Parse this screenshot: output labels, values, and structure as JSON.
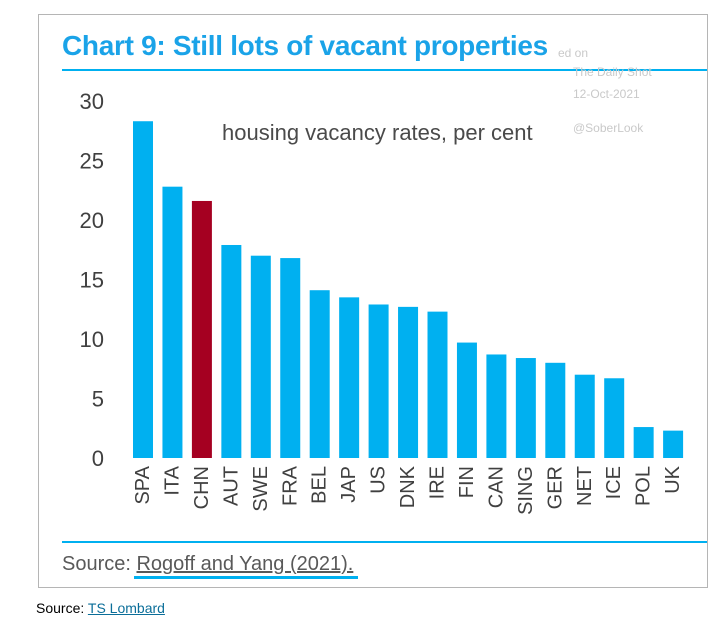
{
  "title": "Chart 9: Still lots of vacant properties",
  "subtitle": "housing vacancy rates, per cent",
  "watermark": {
    "line1": "ed on",
    "line2": "The Daily Shot",
    "line3": "12-Oct-2021",
    "line4": "@SoberLook"
  },
  "source_inner": {
    "prefix": "Source: ",
    "link": "Rogoff and Yang (2021)."
  },
  "source_outer": {
    "prefix": "Source: ",
    "link": "TS Lombard"
  },
  "colors": {
    "bar": "#00b0f0",
    "highlight": "#a50021",
    "accent": "#1aa3e8"
  },
  "chart_data": {
    "type": "bar",
    "title": "Chart 9: Still lots of vacant properties",
    "subtitle": "housing vacancy rates, per cent",
    "xlabel": "",
    "ylabel": "",
    "ylim": [
      0,
      30
    ],
    "yticks": [
      0,
      5,
      10,
      15,
      20,
      25,
      30
    ],
    "grid": false,
    "categories": [
      "SPA",
      "ITA",
      "CHN",
      "AUT",
      "SWE",
      "FRA",
      "BEL",
      "JAP",
      "US",
      "DNK",
      "IRE",
      "FIN",
      "CAN",
      "SING",
      "GER",
      "NET",
      "ICE",
      "POL",
      "UK"
    ],
    "values": [
      28.3,
      22.8,
      21.6,
      17.9,
      17.0,
      16.8,
      14.1,
      13.5,
      12.9,
      12.7,
      12.3,
      9.7,
      8.7,
      8.4,
      8.0,
      7.0,
      6.7,
      2.6,
      2.3
    ],
    "highlight": "CHN"
  }
}
